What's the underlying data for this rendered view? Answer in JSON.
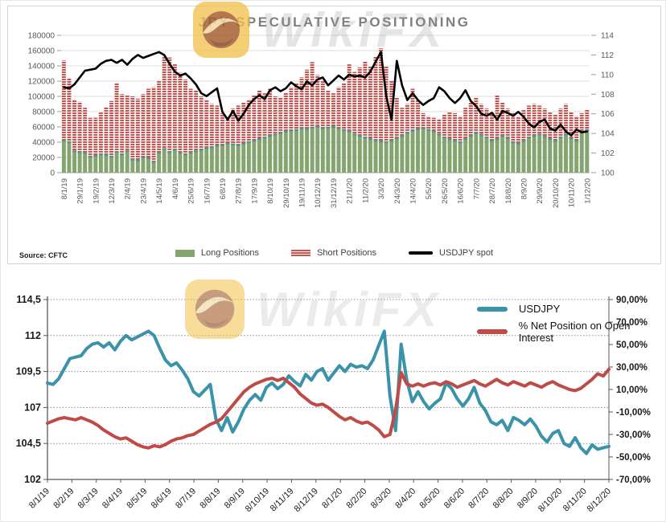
{
  "watermark": {
    "text": "WikiFX"
  },
  "chart_data": [
    {
      "type": "bar",
      "title": "JPY SPECULATIVE POSITIONING",
      "source": "Source: CFTC",
      "legend_position": "bottom",
      "grid": "horizontal-solid",
      "left_axis": {
        "min": 0,
        "max": 180000,
        "step": 20000,
        "tick_labels": [
          "180000",
          "160000",
          "140000",
          "120000",
          "100000",
          "80000",
          "60000",
          "40000",
          "20000",
          "0"
        ]
      },
      "right_axis": {
        "min": 100,
        "max": 114,
        "step": 2,
        "tick_labels": [
          "114",
          "112",
          "110",
          "108",
          "106",
          "104",
          "102",
          "100"
        ]
      },
      "bars_per_tick": 3,
      "x_tick_labels": [
        "8/1/19",
        "29/1/19",
        "19/2/19",
        "12/3/19",
        "2/4/19",
        "23/4/19",
        "14/5/19",
        "4/6/19",
        "25/6/19",
        "16/7/19",
        "6/8/19",
        "27/8/19",
        "17/9/19",
        "8/10/19",
        "29/10/19",
        "19/11/19",
        "10/12/19",
        "31/12/19",
        "21/1/20",
        "11/2/20",
        "3/3/20",
        "24/3/20",
        "14/4/20",
        "5/5/20",
        "26/5/20",
        "16/6/20",
        "7/7/20",
        "28/7/20",
        "18/8/20",
        "8/9/20",
        "29/9/20",
        "20/10/20",
        "10/11/20",
        "1/12/20"
      ],
      "series": [
        {
          "name": "Long Positions",
          "type": "bar",
          "stacked": true,
          "axis": "left",
          "color": "#84a470",
          "values": [
            42000,
            40000,
            28000,
            27000,
            26000,
            21000,
            22000,
            24000,
            23000,
            21000,
            27000,
            24000,
            28000,
            17000,
            16000,
            20000,
            19000,
            14000,
            26000,
            31000,
            27000,
            30000,
            26000,
            24000,
            26000,
            28000,
            30000,
            32000,
            33000,
            35000,
            36000,
            38000,
            37000,
            36000,
            38000,
            40000,
            42000,
            44000,
            46000,
            48000,
            50000,
            52000,
            54000,
            55000,
            56000,
            58000,
            57000,
            59000,
            60000,
            58000,
            59000,
            60000,
            58000,
            56000,
            54000,
            50000,
            48000,
            46000,
            44000,
            42000,
            41000,
            40000,
            42000,
            45000,
            48000,
            52000,
            55000,
            57000,
            58000,
            56000,
            54000,
            50000,
            46000,
            44000,
            42000,
            40000,
            44000,
            48000,
            52000,
            50000,
            46000,
            42000,
            44000,
            48000,
            45000,
            40000,
            38000,
            42000,
            46000,
            48000,
            50000,
            47000,
            44000,
            42000,
            46000,
            50000,
            45000,
            42000,
            54000,
            56000
          ]
        },
        {
          "name": "Short Positions",
          "type": "bar",
          "stacked": true,
          "axis": "left",
          "color": "#c9534f",
          "pattern": "horizontal-stripes",
          "values": [
            105000,
            84000,
            68000,
            66000,
            59000,
            51000,
            50000,
            56000,
            63000,
            73000,
            91000,
            79000,
            73000,
            83000,
            81000,
            83000,
            91000,
            98000,
            94000,
            122000,
            124000,
            112000,
            105000,
            98000,
            84000,
            80000,
            70000,
            64000,
            57000,
            53000,
            42000,
            36000,
            47000,
            52000,
            54000,
            56000,
            60000,
            64000,
            58000,
            62000,
            50000,
            46000,
            51000,
            57000,
            62000,
            67000,
            78000,
            86000,
            68000,
            62000,
            49000,
            44000,
            54000,
            62000,
            88000,
            82000,
            90000,
            100000,
            96000,
            110000,
            122000,
            100000,
            78000,
            53000,
            37000,
            38000,
            55000,
            38000,
            20000,
            18000,
            18000,
            20000,
            30000,
            36000,
            36000,
            34000,
            41000,
            44000,
            46000,
            40000,
            38000,
            38000,
            58000,
            44000,
            39000,
            38000,
            36000,
            40000,
            42000,
            42000,
            38000,
            37000,
            36000,
            34000,
            38000,
            40000,
            35000,
            32000,
            24000,
            26000
          ]
        },
        {
          "name": "USDJPY spot",
          "type": "line",
          "axis": "right",
          "color": "#000000",
          "values": [
            108.7,
            108.6,
            109.0,
            109.7,
            110.4,
            110.5,
            110.6,
            111.1,
            111.4,
            111.5,
            111.2,
            111.5,
            111.0,
            111.6,
            112.0,
            111.7,
            111.9,
            112.1,
            112.3,
            112.0,
            111.1,
            110.3,
            109.9,
            110.1,
            109.6,
            109.0,
            108.1,
            107.8,
            108.2,
            108.6,
            106.2,
            105.4,
            106.3,
            105.3,
            106.0,
            106.9,
            107.5,
            107.9,
            107.5,
            108.4,
            108.7,
            108.3,
            108.6,
            109.2,
            108.8,
            108.5,
            109.3,
            108.9,
            109.5,
            109.7,
            108.9,
            109.4,
            109.9,
            109.5,
            110.0,
            109.8,
            109.9,
            109.7,
            110.3,
            111.3,
            112.3,
            107.8,
            105.4,
            111.4,
            108.9,
            107.4,
            108.1,
            107.4,
            106.9,
            107.3,
            107.6,
            108.7,
            108.3,
            107.6,
            107.1,
            107.6,
            108.4,
            107.3,
            106.8,
            106.0,
            105.8,
            106.1,
            105.4,
            106.3,
            106.1,
            105.8,
            106.2,
            105.7,
            105.0,
            104.6,
            105.2,
            105.4,
            104.5,
            104.3,
            104.9,
            104.2,
            103.8,
            104.4,
            104.1,
            104.2
          ]
        }
      ]
    },
    {
      "type": "line",
      "legend_position": "top-right",
      "grid": "horizontal-dotted",
      "left_axis": {
        "min": 102,
        "max": 114.5,
        "step": 2.5,
        "tick_labels": [
          "114,5",
          "112",
          "109,5",
          "107",
          "104,5",
          "102"
        ]
      },
      "right_axis": {
        "min": -70,
        "max": 90,
        "step": 20,
        "tick_labels": [
          "90,00%",
          "70,00%",
          "50,00%",
          "30,00%",
          "10,00%",
          "-10,00%",
          "-30,00%",
          "-50,00%",
          "-70,00%"
        ]
      },
      "x_tick_labels": [
        "8/1/19",
        "8/2/19",
        "8/3/19",
        "8/4/19",
        "8/5/19",
        "8/6/19",
        "8/7/19",
        "8/8/19",
        "8/9/19",
        "8/10/19",
        "8/11/19",
        "8/12/19",
        "8/1/20",
        "8/2/20",
        "8/3/20",
        "8/4/20",
        "8/5/20",
        "8/6/20",
        "8/7/20",
        "8/8/20",
        "8/9/20",
        "8/10/20",
        "8/11/20",
        "8/12/20"
      ],
      "series": [
        {
          "name": "USDJPY",
          "axis": "left",
          "color": "#3b93a9",
          "values": [
            108.7,
            108.6,
            109.0,
            109.7,
            110.4,
            110.5,
            110.6,
            111.1,
            111.4,
            111.5,
            111.2,
            111.5,
            111.0,
            111.6,
            112.0,
            111.7,
            111.9,
            112.1,
            112.3,
            112.0,
            111.1,
            110.3,
            109.9,
            110.1,
            109.6,
            109.0,
            108.1,
            107.8,
            108.2,
            108.6,
            106.2,
            105.4,
            106.3,
            105.3,
            106.0,
            106.9,
            107.5,
            107.9,
            107.5,
            108.4,
            108.7,
            108.3,
            108.6,
            109.2,
            108.8,
            108.5,
            109.3,
            108.9,
            109.5,
            109.7,
            108.9,
            109.4,
            109.9,
            109.5,
            110.0,
            109.8,
            109.9,
            109.7,
            110.3,
            111.3,
            112.3,
            107.8,
            105.4,
            111.4,
            108.9,
            107.4,
            108.1,
            107.4,
            106.9,
            107.3,
            107.6,
            108.7,
            108.3,
            107.6,
            107.1,
            107.6,
            108.4,
            107.3,
            106.8,
            106.0,
            105.8,
            106.1,
            105.4,
            106.3,
            106.1,
            105.8,
            106.2,
            105.7,
            105.0,
            104.6,
            105.2,
            105.4,
            104.5,
            104.3,
            104.9,
            104.2,
            103.8,
            104.4,
            104.1,
            104.2,
            104.3
          ]
        },
        {
          "name": "% Net Position on Open Interest",
          "axis": "right",
          "color": "#bf4b47",
          "values": [
            -20,
            -18,
            -16,
            -15,
            -16,
            -17,
            -15,
            -17,
            -19,
            -22,
            -26,
            -29,
            -32,
            -34,
            -33,
            -36,
            -39,
            -41,
            -42,
            -40,
            -41,
            -39,
            -36,
            -34,
            -33,
            -31,
            -30,
            -27,
            -24,
            -21,
            -19,
            -16,
            -10,
            -4,
            2,
            8,
            12,
            15,
            17,
            19,
            20,
            18,
            20,
            16,
            12,
            6,
            2,
            -2,
            -4,
            -3,
            -6,
            -10,
            -14,
            -17,
            -15,
            -18,
            -20,
            -19,
            -22,
            -26,
            -32,
            -30,
            -8,
            25,
            15,
            13,
            15,
            13,
            15,
            16,
            14,
            17,
            15,
            12,
            14,
            16,
            18,
            15,
            13,
            16,
            19,
            16,
            14,
            17,
            15,
            13,
            16,
            14,
            12,
            15,
            17,
            14,
            12,
            10,
            9,
            11,
            15,
            19,
            24,
            22,
            28
          ]
        }
      ]
    }
  ]
}
